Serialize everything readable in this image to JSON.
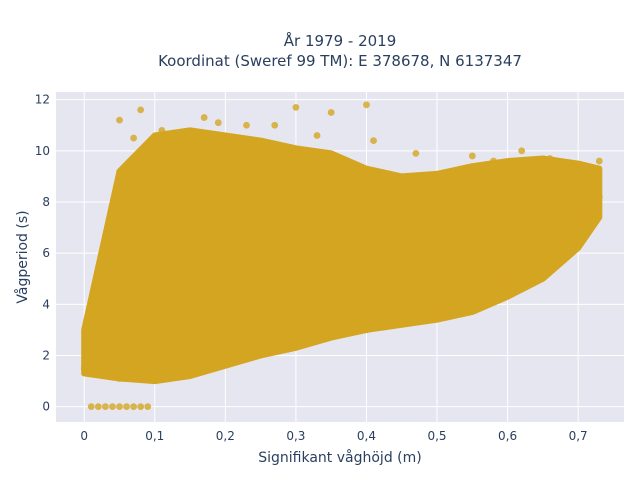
{
  "chart_data": {
    "type": "scatter",
    "title_lines": [
      "År 1979 - 2019",
      "Koordinat (Sweref 99 TM): E 378678, N 6137347"
    ],
    "xlabel": "Signifikant våghöjd (m)",
    "ylabel": "Vågperiod (s)",
    "xlim": [
      -0.04,
      0.765
    ],
    "ylim": [
      -0.6,
      12.3
    ],
    "x_ticks": [
      0,
      0.1,
      0.2,
      0.3,
      0.4,
      0.5,
      0.6,
      0.7
    ],
    "x_tick_labels": [
      "0",
      "0,1",
      "0,2",
      "0,3",
      "0,4",
      "0,5",
      "0,6",
      "0,7"
    ],
    "y_ticks": [
      0,
      2,
      4,
      6,
      8,
      10,
      12
    ],
    "y_tick_labels": [
      "0",
      "2",
      "4",
      "6",
      "8",
      "10",
      "12"
    ],
    "grid": true,
    "background_color": "#e5e6ef",
    "marker_color": "#d4a520",
    "series": [
      {
        "values": [
          {
            "x": 0.0,
            "y": 1.5
          },
          {
            "x": 0.01,
            "y": 0.0
          },
          {
            "x": 0.02,
            "y": 0.0
          },
          {
            "x": 0.03,
            "y": 0.0
          },
          {
            "x": 0.04,
            "y": 0.0
          },
          {
            "x": 0.05,
            "y": 0.0
          },
          {
            "x": 0.06,
            "y": 0.0
          },
          {
            "x": 0.07,
            "y": 0.0
          },
          {
            "x": 0.08,
            "y": 0.0
          },
          {
            "x": 0.09,
            "y": 0.0
          },
          {
            "x": 0.05,
            "y": 11.2
          },
          {
            "x": 0.08,
            "y": 11.6
          },
          {
            "x": 0.07,
            "y": 10.5
          },
          {
            "x": 0.11,
            "y": 10.8
          },
          {
            "x": 0.17,
            "y": 11.3
          },
          {
            "x": 0.3,
            "y": 11.7
          },
          {
            "x": 0.35,
            "y": 11.5
          },
          {
            "x": 0.4,
            "y": 11.8
          },
          {
            "x": 0.41,
            "y": 10.4
          },
          {
            "x": 0.23,
            "y": 11.0
          },
          {
            "x": 0.19,
            "y": 11.1
          },
          {
            "x": 0.27,
            "y": 11.0
          },
          {
            "x": 0.33,
            "y": 10.6
          },
          {
            "x": 0.73,
            "y": 9.6
          },
          {
            "x": 0.73,
            "y": 8.2
          },
          {
            "x": 0.72,
            "y": 7.6
          },
          {
            "x": 0.7,
            "y": 7.2
          },
          {
            "x": 0.68,
            "y": 9.3
          },
          {
            "x": 0.65,
            "y": 5.7
          },
          {
            "x": 0.6,
            "y": 4.9
          },
          {
            "x": 0.55,
            "y": 4.0
          },
          {
            "x": 0.5,
            "y": 3.5
          },
          {
            "x": 0.45,
            "y": 3.3
          },
          {
            "x": 0.4,
            "y": 3.0
          },
          {
            "x": 0.35,
            "y": 2.8
          },
          {
            "x": 0.3,
            "y": 2.4
          },
          {
            "x": 0.25,
            "y": 2.1
          },
          {
            "x": 0.2,
            "y": 1.7
          },
          {
            "x": 0.15,
            "y": 1.3
          },
          {
            "x": 0.1,
            "y": 1.1
          },
          {
            "x": 0.05,
            "y": 1.1
          },
          {
            "x": 0.62,
            "y": 10.0
          },
          {
            "x": 0.55,
            "y": 9.8
          },
          {
            "x": 0.47,
            "y": 9.9
          },
          {
            "x": 0.58,
            "y": 9.6
          },
          {
            "x": 0.66,
            "y": 9.7
          }
        ]
      }
    ],
    "envelope": {
      "x": [
        0.0,
        0.05,
        0.1,
        0.15,
        0.2,
        0.25,
        0.3,
        0.35,
        0.4,
        0.45,
        0.5,
        0.55,
        0.6,
        0.65,
        0.7,
        0.73
      ],
      "y_low": [
        1.3,
        1.1,
        1.0,
        1.2,
        1.6,
        2.0,
        2.3,
        2.7,
        3.0,
        3.2,
        3.4,
        3.7,
        4.3,
        5.0,
        6.2,
        7.4
      ],
      "y_high": [
        3.0,
        9.2,
        10.6,
        10.8,
        10.6,
        10.4,
        10.1,
        9.9,
        9.3,
        9.0,
        9.1,
        9.4,
        9.6,
        9.7,
        9.5,
        9.3
      ]
    }
  }
}
